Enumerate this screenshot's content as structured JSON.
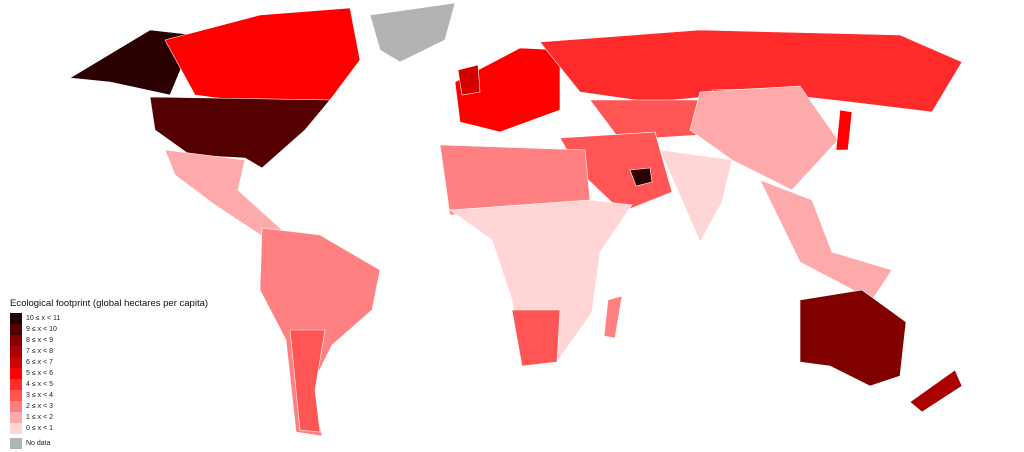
{
  "legend": {
    "title": "Ecological footprint (global hectares per capita)",
    "classes": [
      {
        "label": "10 ≤ x < 11",
        "color": "#2b0000"
      },
      {
        "label": "9 ≤ x < 10",
        "color": "#550000"
      },
      {
        "label": "8 ≤ x < 9",
        "color": "#800000"
      },
      {
        "label": "7 ≤ x < 8",
        "color": "#aa0000"
      },
      {
        "label": "6 ≤ x < 7",
        "color": "#d40000"
      },
      {
        "label": "5 ≤ x < 6",
        "color": "#ff0000"
      },
      {
        "label": "4 ≤ x < 5",
        "color": "#ff2a2a"
      },
      {
        "label": "3 ≤ x < 4",
        "color": "#ff5555"
      },
      {
        "label": "2 ≤ x < 3",
        "color": "#ff8080"
      },
      {
        "label": "1 ≤ x < 2",
        "color": "#ffaaaa"
      },
      {
        "label": "0 ≤ x < 1",
        "color": "#ffd5d5"
      }
    ],
    "no_data": {
      "label": "No data",
      "color": "#b3b3b3"
    }
  }
}
